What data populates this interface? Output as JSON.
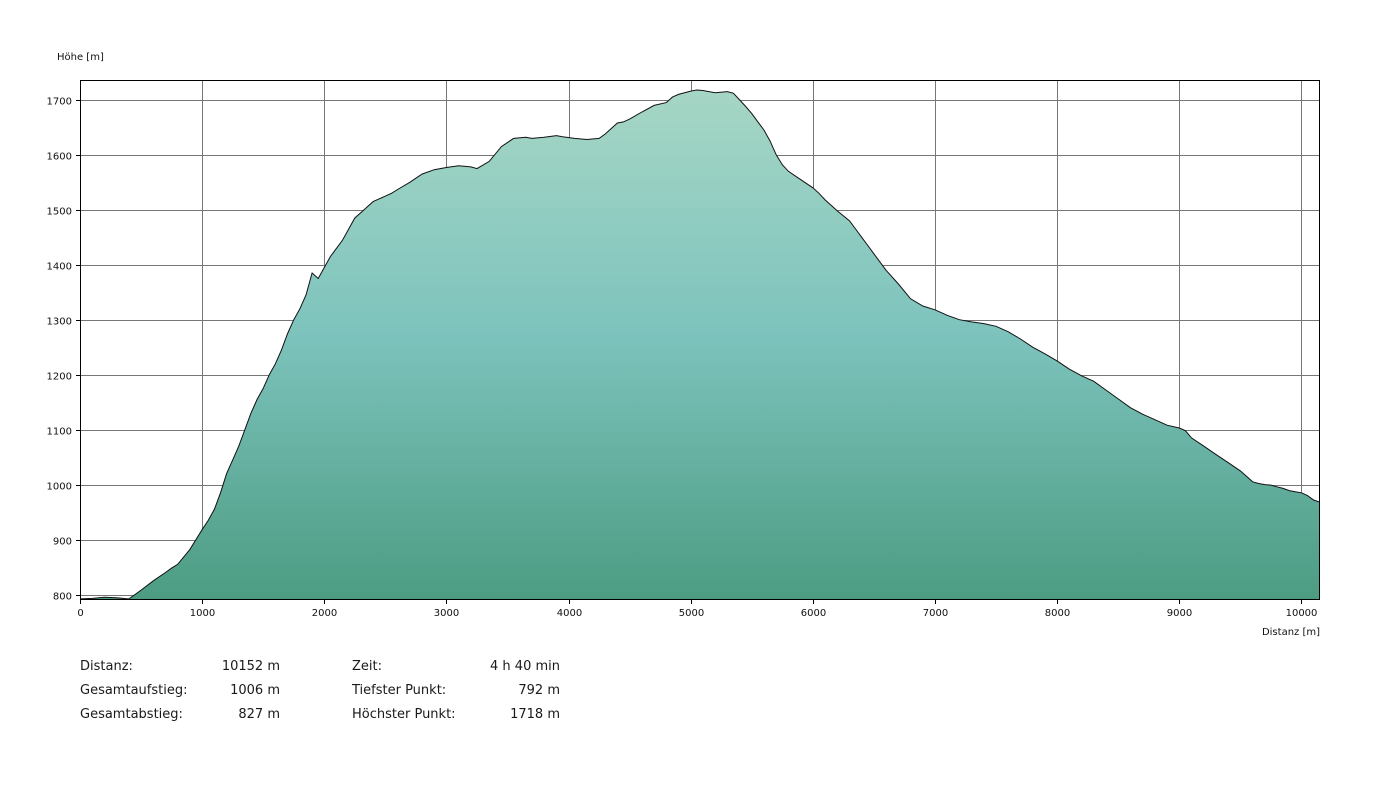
{
  "chart_data": {
    "type": "area",
    "title": "",
    "xlabel": "Distanz [m]",
    "ylabel": "Höhe [m]",
    "xlim": [
      0,
      10152
    ],
    "ylim": [
      790,
      1718
    ],
    "xticks": [
      0,
      1000,
      2000,
      3000,
      4000,
      5000,
      6000,
      7000,
      8000,
      9000,
      10000
    ],
    "yticks": [
      800,
      900,
      1000,
      1100,
      1200,
      1300,
      1400,
      1500,
      1600,
      1700
    ],
    "grid": true,
    "legend": "none",
    "colors": {
      "fill_top": "#a6d6c5",
      "fill_mid": "#7dc3bd",
      "fill_bottom": "#4c9c82",
      "line": "#111111",
      "grid": "#777777"
    },
    "x": [
      0,
      100,
      200,
      300,
      400,
      500,
      600,
      700,
      750,
      800,
      900,
      1000,
      1050,
      1100,
      1150,
      1200,
      1250,
      1300,
      1350,
      1400,
      1450,
      1500,
      1550,
      1600,
      1650,
      1700,
      1750,
      1800,
      1850,
      1900,
      1950,
      2000,
      2050,
      2100,
      2150,
      2200,
      2250,
      2300,
      2350,
      2400,
      2450,
      2500,
      2550,
      2600,
      2700,
      2800,
      2900,
      3000,
      3100,
      3200,
      3250,
      3350,
      3450,
      3550,
      3650,
      3700,
      3800,
      3900,
      3950,
      4050,
      4150,
      4250,
      4300,
      4350,
      4400,
      4450,
      4500,
      4600,
      4700,
      4800,
      4850,
      4900,
      5000,
      5050,
      5100,
      5150,
      5200,
      5300,
      5350,
      5400,
      5450,
      5500,
      5550,
      5600,
      5650,
      5700,
      5750,
      5800,
      5900,
      6000,
      6050,
      6100,
      6150,
      6200,
      6300,
      6350,
      6400,
      6450,
      6500,
      6600,
      6700,
      6800,
      6900,
      7000,
      7100,
      7200,
      7300,
      7400,
      7500,
      7600,
      7700,
      7800,
      7900,
      8000,
      8100,
      8200,
      8300,
      8400,
      8500,
      8600,
      8700,
      8800,
      8900,
      9000,
      9050,
      9100,
      9200,
      9300,
      9400,
      9500,
      9550,
      9600,
      9650,
      9700,
      9750,
      9800,
      9850,
      9900,
      9950,
      10000,
      10050,
      10100,
      10152
    ],
    "y": [
      792,
      793,
      795,
      794,
      792,
      808,
      825,
      840,
      848,
      855,
      882,
      918,
      935,
      955,
      985,
      1020,
      1045,
      1070,
      1100,
      1130,
      1155,
      1175,
      1200,
      1220,
      1245,
      1275,
      1300,
      1320,
      1345,
      1385,
      1375,
      1395,
      1415,
      1430,
      1445,
      1465,
      1485,
      1495,
      1505,
      1515,
      1520,
      1525,
      1530,
      1537,
      1550,
      1565,
      1573,
      1577,
      1580,
      1578,
      1575,
      1588,
      1615,
      1630,
      1632,
      1630,
      1632,
      1635,
      1633,
      1630,
      1628,
      1630,
      1638,
      1648,
      1658,
      1660,
      1665,
      1678,
      1690,
      1695,
      1705,
      1710,
      1716,
      1718,
      1717,
      1715,
      1713,
      1715,
      1712,
      1700,
      1688,
      1675,
      1660,
      1645,
      1625,
      1600,
      1582,
      1570,
      1555,
      1540,
      1530,
      1518,
      1508,
      1498,
      1480,
      1465,
      1450,
      1435,
      1420,
      1390,
      1365,
      1338,
      1325,
      1318,
      1308,
      1300,
      1296,
      1293,
      1288,
      1278,
      1265,
      1250,
      1238,
      1225,
      1210,
      1198,
      1188,
      1172,
      1156,
      1140,
      1128,
      1118,
      1108,
      1103,
      1098,
      1085,
      1070,
      1055,
      1040,
      1025,
      1015,
      1005,
      1002,
      1000,
      999,
      996,
      993,
      989,
      987,
      985,
      980,
      972,
      968
    ]
  },
  "stats": {
    "distance": {
      "label": "Distanz:",
      "value": "10152 m"
    },
    "ascent": {
      "label": "Gesamtaufstieg:",
      "value": "1006 m"
    },
    "descent": {
      "label": "Gesamtabstieg:",
      "value": "827 m"
    },
    "time": {
      "label": "Zeit:",
      "value": "4 h 40 min"
    },
    "lowest": {
      "label": "Tiefster Punkt:",
      "value": "792 m"
    },
    "highest": {
      "label": "Höchster Punkt:",
      "value": "1718 m"
    }
  }
}
